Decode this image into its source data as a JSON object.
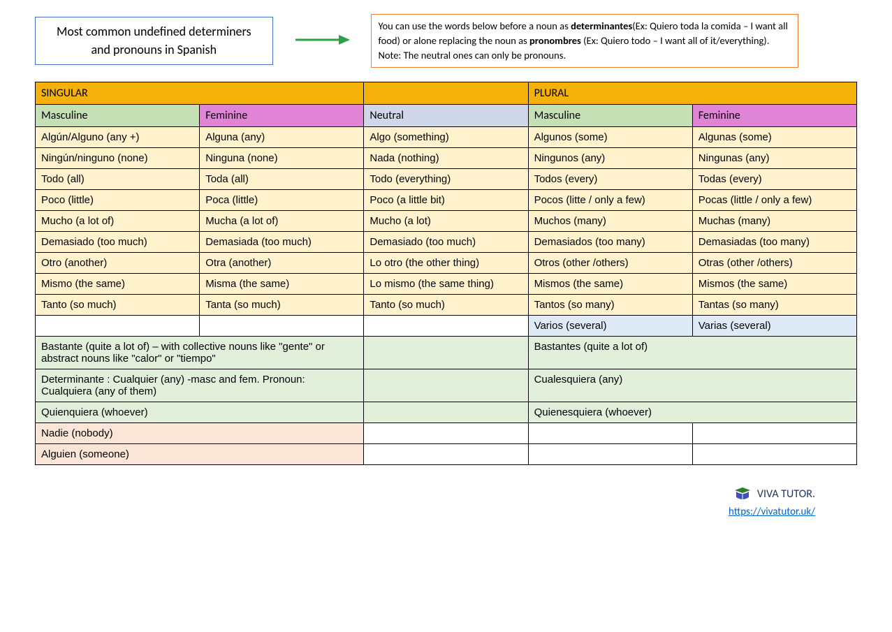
{
  "header": {
    "title_line1": "Most common undefined determiners",
    "title_line2": "and pronouns in Spanish",
    "info_html": "You can use the words below before a noun as <b>determinantes</b>(Ex: Quiero toda la comida – I want all food) or alone replacing the noun as <b>pronombres</b> (Ex: Quiero todo – I want all of it/everything). Note: The neutral ones can only be pronouns."
  },
  "colors": {
    "title_border": "#4472c4",
    "info_border": "#ed7d31",
    "arrow": "#2e9e4b",
    "hdr_orange": "#f4b10a",
    "hdr_green": "#c5e0b4",
    "hdr_pink": "#e085d5",
    "hdr_blue": "#d0d7e8",
    "cell_cream": "#fff2cc",
    "cell_blue": "#deebf7",
    "cell_lgreen": "#e2efda",
    "cell_lpink": "#fbe5d6",
    "link": "#0563c1",
    "brand": "#1f3864"
  },
  "table": {
    "top": {
      "singular": "SINGULAR",
      "plural": "PLURAL"
    },
    "sub": {
      "masc": "Masculine",
      "fem": "Feminine",
      "neut": "Neutral"
    },
    "rows": [
      [
        "Algún/Alguno (any +)",
        "Alguna (any)",
        "Algo (something)",
        "Algunos (some)",
        "Algunas (some)"
      ],
      [
        "Ningún/ninguno (none)",
        "Ninguna (none)",
        "Nada (nothing)",
        "Ningunos (any)",
        "Ningunas (any)"
      ],
      [
        "Todo (all)",
        "Toda (all)",
        "Todo (everything)",
        "Todos (every)",
        "Todas (every)"
      ],
      [
        "Poco (little)",
        "Poca (little)",
        "Poco (a little bit)",
        "Pocos (litte / only a few)",
        "Pocas (little / only a few)"
      ],
      [
        "Mucho (a lot of)",
        "Mucha (a lot of)",
        "Mucho (a lot)",
        "Muchos (many)",
        "Muchas (many)"
      ],
      [
        "Demasiado (too much)",
        "Demasiada (too much)",
        "Demasiado (too much)",
        "Demasiados (too many)",
        "Demasiadas (too many)"
      ],
      [
        "Otro (another)",
        "Otra (another)",
        "Lo otro (the other thing)",
        "Otros (other /others)",
        "Otras (other /others)"
      ],
      [
        "Mismo (the same)",
        "Misma (the same)",
        "Lo mismo (the same thing)",
        "Mismos (the same)",
        "Mismos (the same)"
      ],
      [
        "Tanto (so much)",
        "Tanta (so much)",
        "Tanto (so much)",
        "Tantos (so many)",
        "Tantas (so many)"
      ]
    ],
    "varios": {
      "m": "Varios (several)",
      "f": "Varias (several)"
    },
    "bastante": {
      "sing": "Bastante (quite a lot of) – with collective nouns like \"gente\" or abstract nouns like \"calor\" or \"tiempo\"",
      "plur": "Bastantes (quite a lot of)"
    },
    "cualquier": {
      "sing": "Determinante : Cualquier (any) -masc and fem. Pronoun: Cualquiera (any of them)",
      "plur": "Cualesquiera (any)"
    },
    "quien": {
      "sing": "Quienquiera (whoever)",
      "plur": "Quienesquiera (whoever)"
    },
    "nadie": "Nadie (nobody)",
    "alguien": "Alguien (someone)"
  },
  "footer": {
    "brand": "VIVA TUTOR.",
    "url": "https://vivatutor.uk/"
  }
}
